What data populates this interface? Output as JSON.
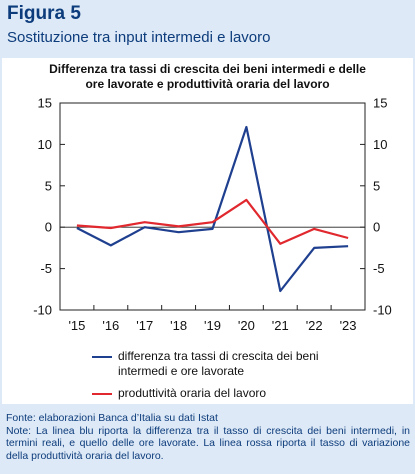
{
  "figure": {
    "label": "Figura 5",
    "subtitle": "Sostituzione tra input intermedi e lavoro"
  },
  "chart_data": {
    "type": "line",
    "title_line1": "Differenza tra tassi di crescita dei beni intermedi e delle",
    "title_line2": "ore lavorate e produttività oraria del lavoro",
    "categories": [
      "'15",
      "'16",
      "'17",
      "'18",
      "'19",
      "'20",
      "'21",
      "'22",
      "'23"
    ],
    "ylim": [
      -10,
      15
    ],
    "yticks": [
      15,
      10,
      5,
      0,
      -5,
      -10
    ],
    "dual_axis_labels": true,
    "grid": false,
    "legend_position": "bottom",
    "series": [
      {
        "name_line1": "differenza tra tassi di crescita dei beni",
        "name_line2": "intermedi e ore lavorate",
        "color": "#1f3f8f",
        "values": [
          -0.1,
          -2.2,
          0.0,
          -0.6,
          -0.2,
          12.1,
          -7.7,
          -2.5,
          -2.3
        ]
      },
      {
        "name_line1": "produttività oraria del lavoro",
        "name_line2": "",
        "color": "#e0282e",
        "values": [
          0.2,
          -0.1,
          0.6,
          0.1,
          0.6,
          3.3,
          -2.0,
          -0.2,
          -1.3
        ]
      }
    ]
  },
  "notes": {
    "source": "Fonte: elaborazioni Banca d’Italia su dati Istat",
    "note": "Note: La linea blu riporta la differenza tra il tasso di crescita dei beni intermedi, in termini reali, e quello delle ore lavorate. La linea rossa riporta il tasso di variazione della produttività oraria del lavoro."
  }
}
